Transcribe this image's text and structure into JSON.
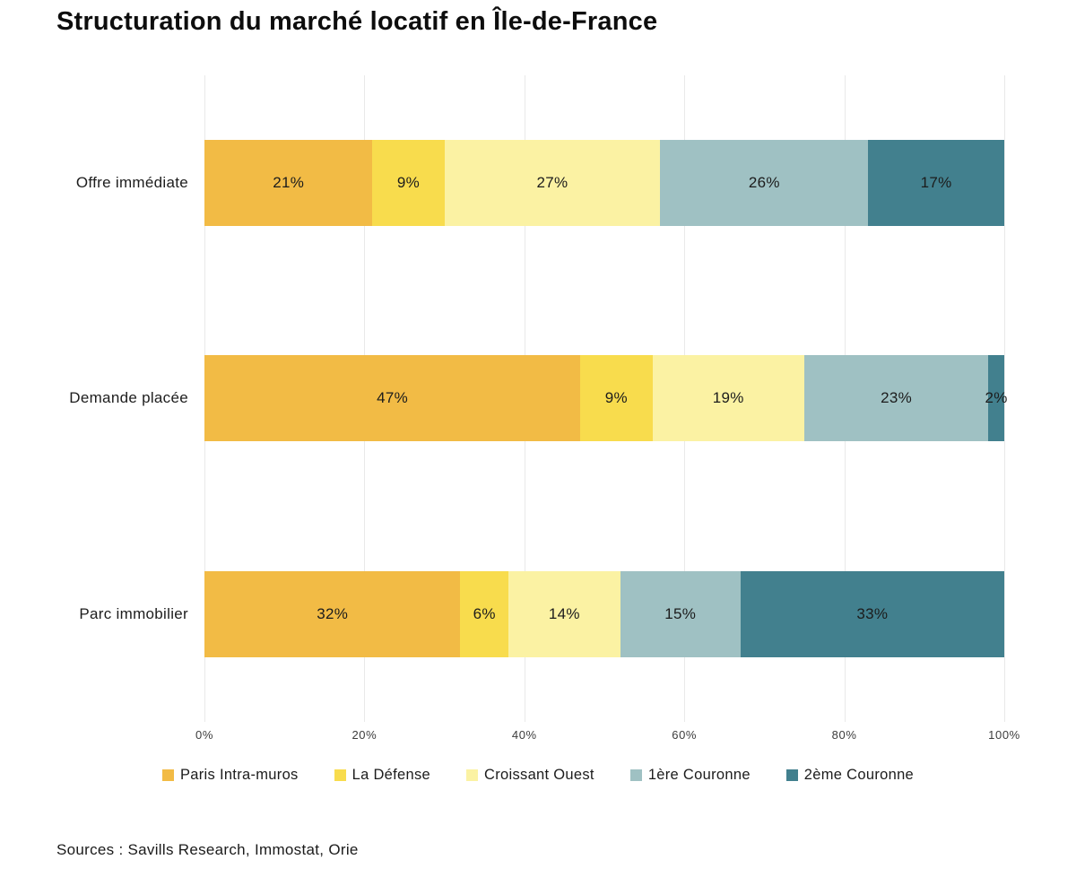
{
  "title": "Structuration du marché locatif en Île-de-France",
  "sources": "Sources : Savills Research, Immostat, Orie",
  "colors": {
    "grid": "#e9e9e9",
    "text": "#1c1c1c",
    "axis_text": "#3c3c3c"
  },
  "chart_data": {
    "type": "bar",
    "orientation": "horizontal",
    "stacked": true,
    "title": "Structuration du marché locatif en Île-de-France",
    "categories": [
      "Offre immédiate",
      "Demande placée",
      "Parc immobilier"
    ],
    "series": [
      {
        "name": "Paris Intra-muros",
        "color": "#F2BB45",
        "values": [
          21,
          47,
          32
        ]
      },
      {
        "name": "La Défense",
        "color": "#F8DC4D",
        "values": [
          9,
          9,
          6
        ]
      },
      {
        "name": "Croissant Ouest",
        "color": "#FBF2A3",
        "values": [
          27,
          19,
          14
        ]
      },
      {
        "name": "1ère Couronne",
        "color": "#9FC1C3",
        "values": [
          26,
          23,
          15
        ]
      },
      {
        "name": "2ème Couronne",
        "color": "#42808E",
        "values": [
          17,
          2,
          33
        ]
      }
    ],
    "value_label_suffix": "%",
    "x_ticks": [
      "0%",
      "20%",
      "40%",
      "60%",
      "80%",
      "100%"
    ],
    "xlim": [
      0,
      100
    ],
    "grid": "vertical",
    "legend_position": "bottom"
  }
}
